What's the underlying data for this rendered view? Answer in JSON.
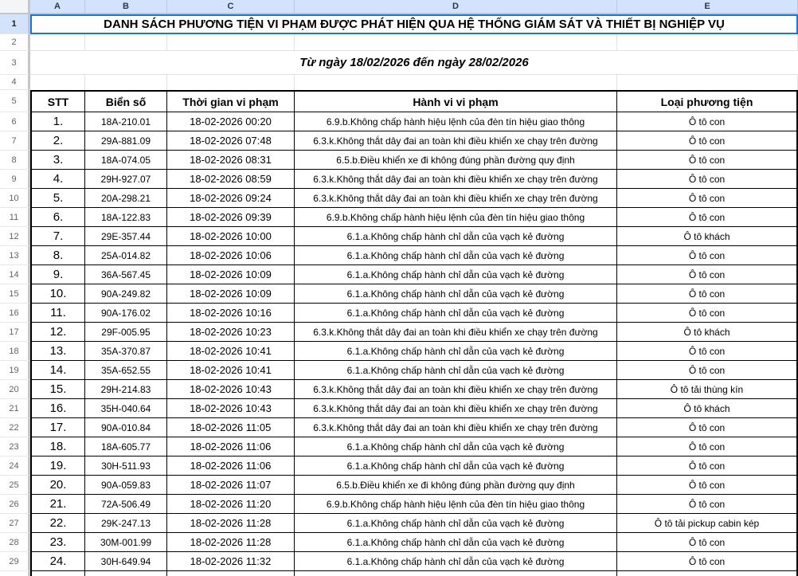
{
  "sheet": {
    "column_headers": [
      "A",
      "B",
      "C",
      "D",
      "E"
    ],
    "row_numbers": [
      "1",
      "2",
      "3",
      "4",
      "5",
      "6",
      "7",
      "8",
      "9",
      "10",
      "11",
      "12",
      "13",
      "14",
      "15",
      "16",
      "17",
      "18",
      "19",
      "20",
      "21",
      "22",
      "23",
      "24",
      "25",
      "26",
      "27",
      "28",
      "29"
    ],
    "title": "DANH SÁCH PHƯƠNG TIỆN VI PHẠM ĐƯỢC PHÁT HIỆN QUA HỆ THỐNG GIÁM SÁT VÀ THIẾT BỊ NGHIỆP VỤ",
    "subtitle": "Từ ngày 18/02/2026 đến ngày 28/02/2026",
    "colors": {
      "header_highlight": "#d3e3fd",
      "selection_border": "#1a73e8",
      "gridline": "#e2e2e2",
      "table_border": "#000000"
    }
  },
  "table": {
    "headers": {
      "stt": "STT",
      "plate": "Biển số",
      "time": "Thời gian vi phạm",
      "violation": "Hành vi vi phạm",
      "vehicle": "Loại phương tiện"
    },
    "rows": [
      {
        "stt": "1.",
        "plate": "18A-210.01",
        "time": "18-02-2026 00:20",
        "violation": "6.9.b.Không chấp hành hiệu lệnh của đèn tín hiệu giao thông",
        "vehicle": "Ô tô con"
      },
      {
        "stt": "2.",
        "plate": "29A-881.09",
        "time": "18-02-2026 07:48",
        "violation": "6.3.k.Không thắt dây đai an toàn khi điều khiển xe chạy trên đường",
        "vehicle": "Ô tô con"
      },
      {
        "stt": "3.",
        "plate": "18A-074.05",
        "time": "18-02-2026 08:31",
        "violation": "6.5.b.Điều khiển xe đi không đúng phần đường quy định",
        "vehicle": "Ô tô con"
      },
      {
        "stt": "4.",
        "plate": "29H-927.07",
        "time": "18-02-2026 08:59",
        "violation": "6.3.k.Không thắt dây đai an toàn khi điều khiển xe chạy trên đường",
        "vehicle": "Ô tô con"
      },
      {
        "stt": "5.",
        "plate": "20A-298.21",
        "time": "18-02-2026 09:24",
        "violation": "6.3.k.Không thắt dây đai an toàn khi điều khiển xe chạy trên đường",
        "vehicle": "Ô tô con"
      },
      {
        "stt": "6.",
        "plate": "18A-122.83",
        "time": "18-02-2026 09:39",
        "violation": "6.9.b.Không chấp hành hiệu lệnh của đèn tín hiệu giao thông",
        "vehicle": "Ô tô con"
      },
      {
        "stt": "7.",
        "plate": "29E-357.44",
        "time": "18-02-2026 10:00",
        "violation": "6.1.a.Không chấp hành chỉ dẫn của vạch kẻ đường",
        "vehicle": "Ô tô khách"
      },
      {
        "stt": "8.",
        "plate": "25A-014.82",
        "time": "18-02-2026 10:06",
        "violation": "6.1.a.Không chấp hành chỉ dẫn của vạch kẻ đường",
        "vehicle": "Ô tô con"
      },
      {
        "stt": "9.",
        "plate": "36A-567.45",
        "time": "18-02-2026 10:09",
        "violation": "6.1.a.Không chấp hành chỉ dẫn của vạch kẻ đường",
        "vehicle": "Ô tô con"
      },
      {
        "stt": "10.",
        "plate": "90A-249.82",
        "time": "18-02-2026 10:09",
        "violation": "6.1.a.Không chấp hành chỉ dẫn của vạch kẻ đường",
        "vehicle": "Ô tô con"
      },
      {
        "stt": "11.",
        "plate": "90A-176.02",
        "time": "18-02-2026 10:16",
        "violation": "6.1.a.Không chấp hành chỉ dẫn của vạch kẻ đường",
        "vehicle": "Ô tô con"
      },
      {
        "stt": "12.",
        "plate": "29F-005.95",
        "time": "18-02-2026 10:23",
        "violation": "6.3.k.Không thắt dây đai an toàn khi điều khiển xe chạy trên đường",
        "vehicle": "Ô tô khách"
      },
      {
        "stt": "13.",
        "plate": "35A-370.87",
        "time": "18-02-2026 10:41",
        "violation": "6.1.a.Không chấp hành chỉ dẫn của vạch kẻ đường",
        "vehicle": "Ô tô con"
      },
      {
        "stt": "14.",
        "plate": "35A-652.55",
        "time": "18-02-2026 10:41",
        "violation": "6.1.a.Không chấp hành chỉ dẫn của vạch kẻ đường",
        "vehicle": "Ô tô con"
      },
      {
        "stt": "15.",
        "plate": "29H-214.83",
        "time": "18-02-2026 10:43",
        "violation": "6.3.k.Không thắt dây đai an toàn khi điều khiển xe chạy trên đường",
        "vehicle": "Ô tô tải thùng kín"
      },
      {
        "stt": "16.",
        "plate": "35H-040.64",
        "time": "18-02-2026 10:43",
        "violation": "6.3.k.Không thắt dây đai an toàn khi điều khiển xe chạy trên đường",
        "vehicle": "Ô tô khách"
      },
      {
        "stt": "17.",
        "plate": "90A-010.84",
        "time": "18-02-2026 11:05",
        "violation": "6.3.k.Không thắt dây đai an toàn khi điều khiển xe chạy trên đường",
        "vehicle": "Ô tô con"
      },
      {
        "stt": "18.",
        "plate": "18A-605.77",
        "time": "18-02-2026 11:06",
        "violation": "6.1.a.Không chấp hành chỉ dẫn của vạch kẻ đường",
        "vehicle": "Ô tô con"
      },
      {
        "stt": "19.",
        "plate": "30H-511.93",
        "time": "18-02-2026 11:06",
        "violation": "6.1.a.Không chấp hành chỉ dẫn của vạch kẻ đường",
        "vehicle": "Ô tô con"
      },
      {
        "stt": "20.",
        "plate": "90A-059.83",
        "time": "18-02-2026 11:07",
        "violation": "6.5.b.Điều khiển xe đi không đúng phần đường quy định",
        "vehicle": "Ô tô con"
      },
      {
        "stt": "21.",
        "plate": "72A-506.49",
        "time": "18-02-2026 11:20",
        "violation": "6.9.b.Không chấp hành hiệu lệnh của đèn tín hiệu giao thông",
        "vehicle": "Ô tô con"
      },
      {
        "stt": "22.",
        "plate": "29K-247.13",
        "time": "18-02-2026 11:28",
        "violation": "6.1.a.Không chấp hành chỉ dẫn của vạch kẻ đường",
        "vehicle": "Ô tô tải pickup cabin kép"
      },
      {
        "stt": "23.",
        "plate": "30M-001.99",
        "time": "18-02-2026 11:28",
        "violation": "6.1.a.Không chấp hành chỉ dẫn của vạch kẻ đường",
        "vehicle": "Ô tô con"
      },
      {
        "stt": "24.",
        "plate": "30H-649.94",
        "time": "18-02-2026 11:32",
        "violation": "6.1.a.Không chấp hành chỉ dẫn của vạch kẻ đường",
        "vehicle": "Ô tô con"
      }
    ]
  }
}
